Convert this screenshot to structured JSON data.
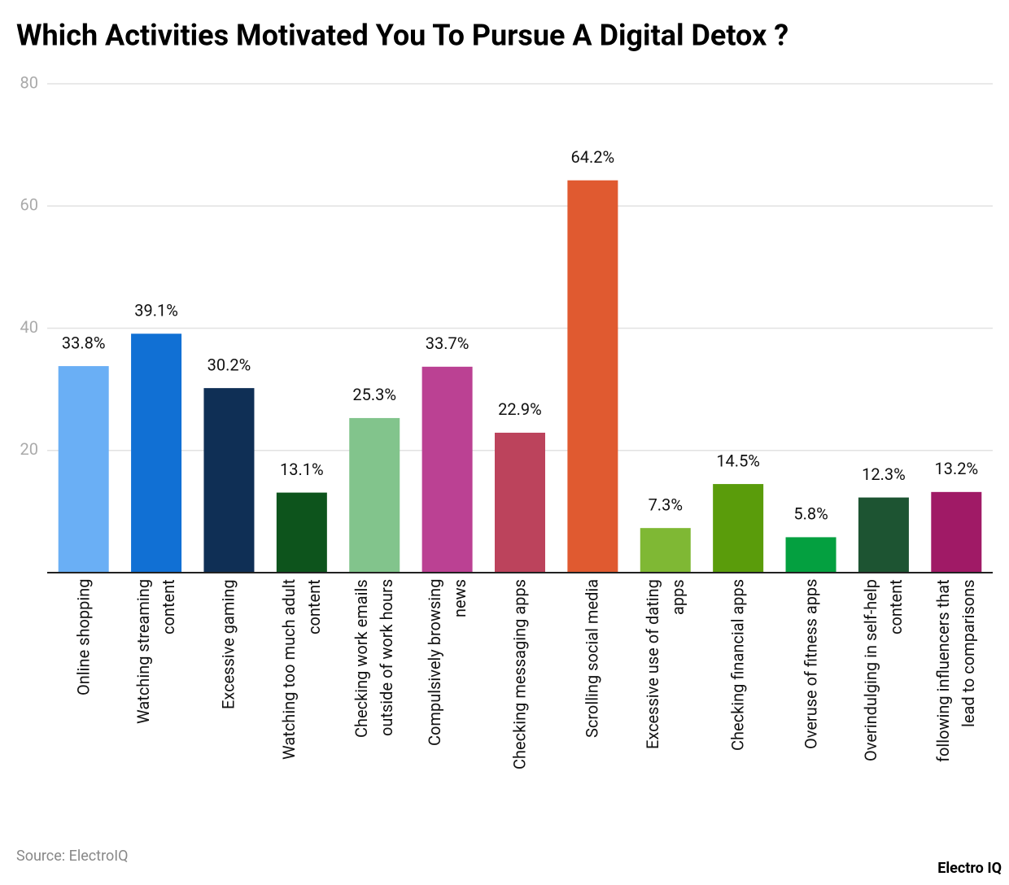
{
  "chart_data": {
    "type": "bar",
    "title": "Which Activities Motivated You To Pursue A Digital Detox ?",
    "categories": [
      "Online shopping",
      "Watching streaming\ncontent",
      "Excessive gaming",
      "Watching too much adult\ncontent",
      "Checking work emails\noutside of work hours",
      "Compulsively browsing\nnews",
      "Checking messaging apps",
      "Scrolling social media",
      "Excessive use of dating\napps",
      "Checking financial apps",
      "Overuse of fitness apps",
      "Overindulging in self-help\ncontent",
      "following influencers that\nlead to comparisons"
    ],
    "values": [
      33.8,
      39.1,
      30.2,
      13.1,
      25.3,
      33.7,
      22.9,
      64.2,
      7.3,
      14.5,
      5.8,
      12.3,
      13.2
    ],
    "value_labels": [
      "33.8%",
      "39.1%",
      "30.2%",
      "13.1%",
      "25.3%",
      "33.7%",
      "22.9%",
      "64.2%",
      "7.3%",
      "14.5%",
      "5.8%",
      "12.3%",
      "13.2%"
    ],
    "colors": [
      "#6aaff5",
      "#1170d4",
      "#0f2f55",
      "#0d541c",
      "#82c48c",
      "#bb4193",
      "#bc435c",
      "#e05a30",
      "#7fb834",
      "#5a9c0b",
      "#04a040",
      "#1d5432",
      "#a01a66"
    ],
    "ylim": [
      0,
      80
    ],
    "yticks": [
      20,
      40,
      60,
      80
    ],
    "grid": true,
    "source": "Source: ElectroIQ",
    "brand": "Electro IQ"
  }
}
